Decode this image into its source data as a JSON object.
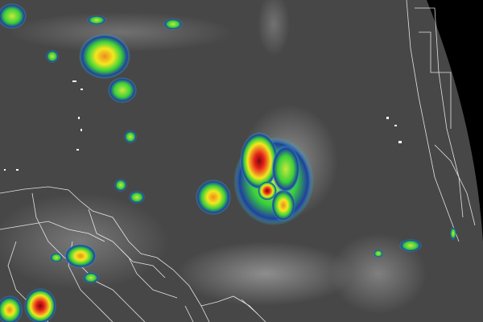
{
  "image": {
    "type": "enhanced infrared satellite image",
    "colors": {
      "ocean_background": "#474747",
      "space": "#000000",
      "low_cloud": "#8a8a8a",
      "cold_tops_cyan": "#35c8e0",
      "cold_tops_blue": "#1f3f9f",
      "cold_tops_green": "#3ad03a",
      "cold_tops_yellow": "#f2e81e",
      "cold_tops_orange": "#f08a20",
      "cold_tops_red": "#e3201b",
      "cold_tops_darkred": "#8a0c0c",
      "borders": "#ffffff"
    },
    "features": [
      "tropical-cyclone",
      "convective-clusters",
      "coastlines",
      "country-borders",
      "earth-limb"
    ]
  }
}
